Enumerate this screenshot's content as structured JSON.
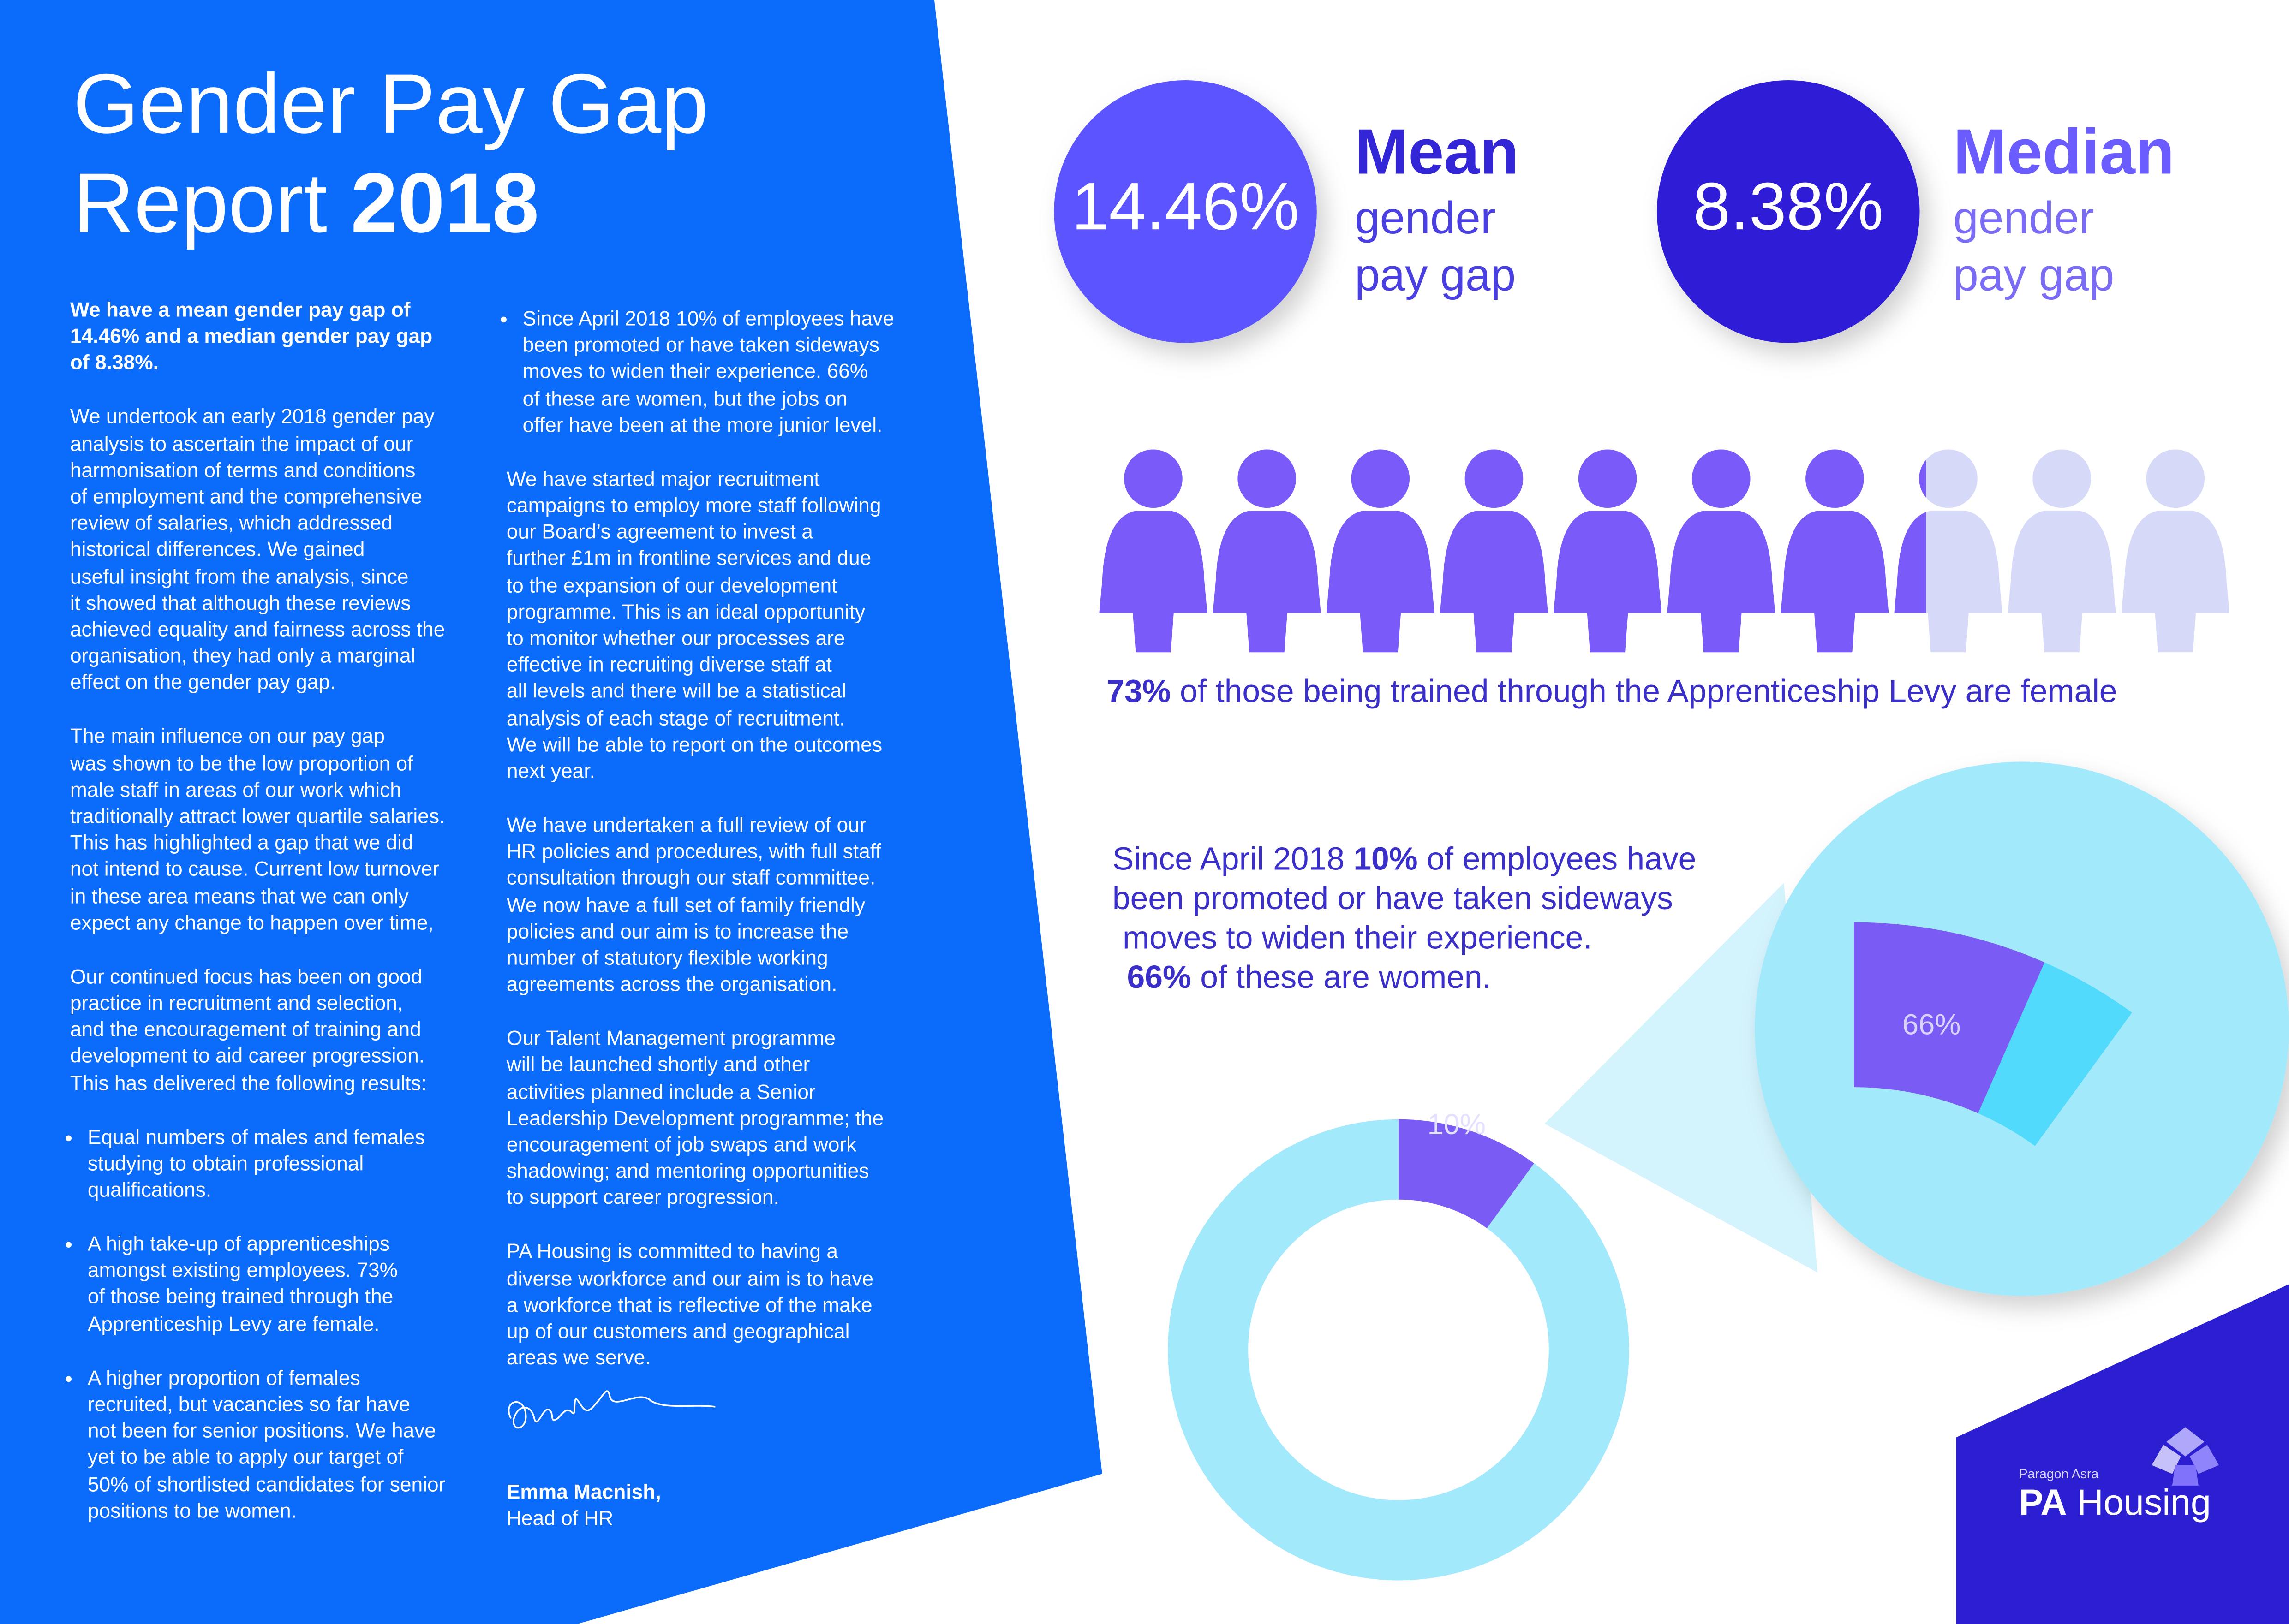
{
  "title": {
    "line1": "Gender Pay Gap",
    "line2": "Report",
    "year": "2018"
  },
  "column1": {
    "intro": [
      "We have a mean gender pay gap of",
      "14.46% and a median gender pay gap",
      "of 8.38%."
    ],
    "paragraphs": [
      [
        "We undertook an early 2018 gender pay",
        "analysis to ascertain the impact of our",
        "harmonisation of terms and conditions",
        "of employment and the comprehensive",
        "review of salaries, which addressed",
        "historical differences. We gained",
        "useful insight from the analysis, since",
        "it showed that although these reviews",
        "achieved equality and fairness across the",
        "organisation, they had only a marginal",
        "effect on the gender pay gap."
      ],
      [
        "The main influence on our pay gap",
        "was shown to be the low proportion of",
        "male staff in areas of our work which",
        "traditionally attract lower quartile salaries.",
        "This has highlighted a gap that we did",
        "not intend to cause. Current low turnover",
        "in these area means that we can only",
        "expect any change to happen over time,"
      ],
      [
        "Our continued focus has been on good",
        "practice in recruitment and selection,",
        "and the encouragement of training and",
        "development to aid career progression.",
        "This has delivered the following results:"
      ]
    ],
    "bullets": [
      [
        "Equal numbers of males and females",
        "studying to obtain professional",
        "qualifications."
      ],
      [
        "A high take-up of apprenticeships",
        "amongst existing employees. 73%",
        "of those being trained through the",
        "Apprenticeship Levy are female."
      ],
      [
        "A higher proportion of females",
        "recruited, but vacancies so far have",
        "not been for senior positions. We have",
        "yet to be able to apply our target of",
        "50% of shortlisted candidates for senior",
        "positions to be women."
      ]
    ]
  },
  "column2": {
    "bullets": [
      [
        "Since April 2018 10% of employees have",
        "been promoted or have taken sideways",
        "moves to widen their experience. 66%",
        "of these are women, but the jobs on",
        "offer have been at the more junior level."
      ]
    ],
    "paragraphs": [
      [
        "We have started major recruitment",
        "campaigns to employ more staff following",
        "our Board’s agreement to invest a",
        "further £1m in frontline services and due",
        "to the expansion of our development",
        "programme. This is an ideal opportunity",
        "to monitor whether our processes are",
        "effective in recruiting diverse staff at",
        "all levels and there will be a statistical",
        "analysis of each stage of recruitment.",
        "We will be able to report on the outcomes",
        "next year."
      ],
      [
        "We have undertaken a full review of our",
        "HR policies and procedures, with full staff",
        "consultation through our staff committee.",
        "We now have a full set of family friendly",
        "policies and our aim is to increase the",
        "number of statutory flexible working",
        "agreements across the organisation."
      ],
      [
        "Our Talent Management programme",
        "will be launched shortly and other",
        "activities planned include a Senior",
        "Leadership Development programme; the",
        "encouragement of job swaps and work",
        "shadowing; and mentoring opportunities",
        "to support career progression."
      ],
      [
        "PA Housing is committed to having a",
        "diverse workforce and our aim is to have",
        "a workforce that is reflective of the make",
        "up of our customers and geographical",
        "areas we serve."
      ]
    ],
    "signature": {
      "name": "Emma Macnish,",
      "role": "Head of HR"
    }
  },
  "mean": {
    "value_label": "14.46%",
    "title": "Mean",
    "line1": "gender",
    "line2": "pay gap"
  },
  "median": {
    "value_label": "8.38%",
    "title": "Median",
    "line1": "gender",
    "line2": "pay gap"
  },
  "apprenticeship": {
    "value": 73,
    "value_label": "73%",
    "text": "of those being trained through the Apprenticeship Levy are female"
  },
  "promotion": {
    "line1_start": "Since April 2018",
    "line1_bold": "10%",
    "line1_end": "of employees have",
    "line2": "been promoted or have taken sideways",
    "line3": "moves to widen their experience.",
    "line4_bold": "66%",
    "line4_end": "of these are women."
  },
  "donut": {
    "value": 10,
    "value_label": "10%"
  },
  "zoom": {
    "value": 66,
    "value_label": "66%"
  },
  "logo": {
    "tagline": "Paragon Asra",
    "brand_bold": "PA",
    "brand": "Housing"
  }
}
